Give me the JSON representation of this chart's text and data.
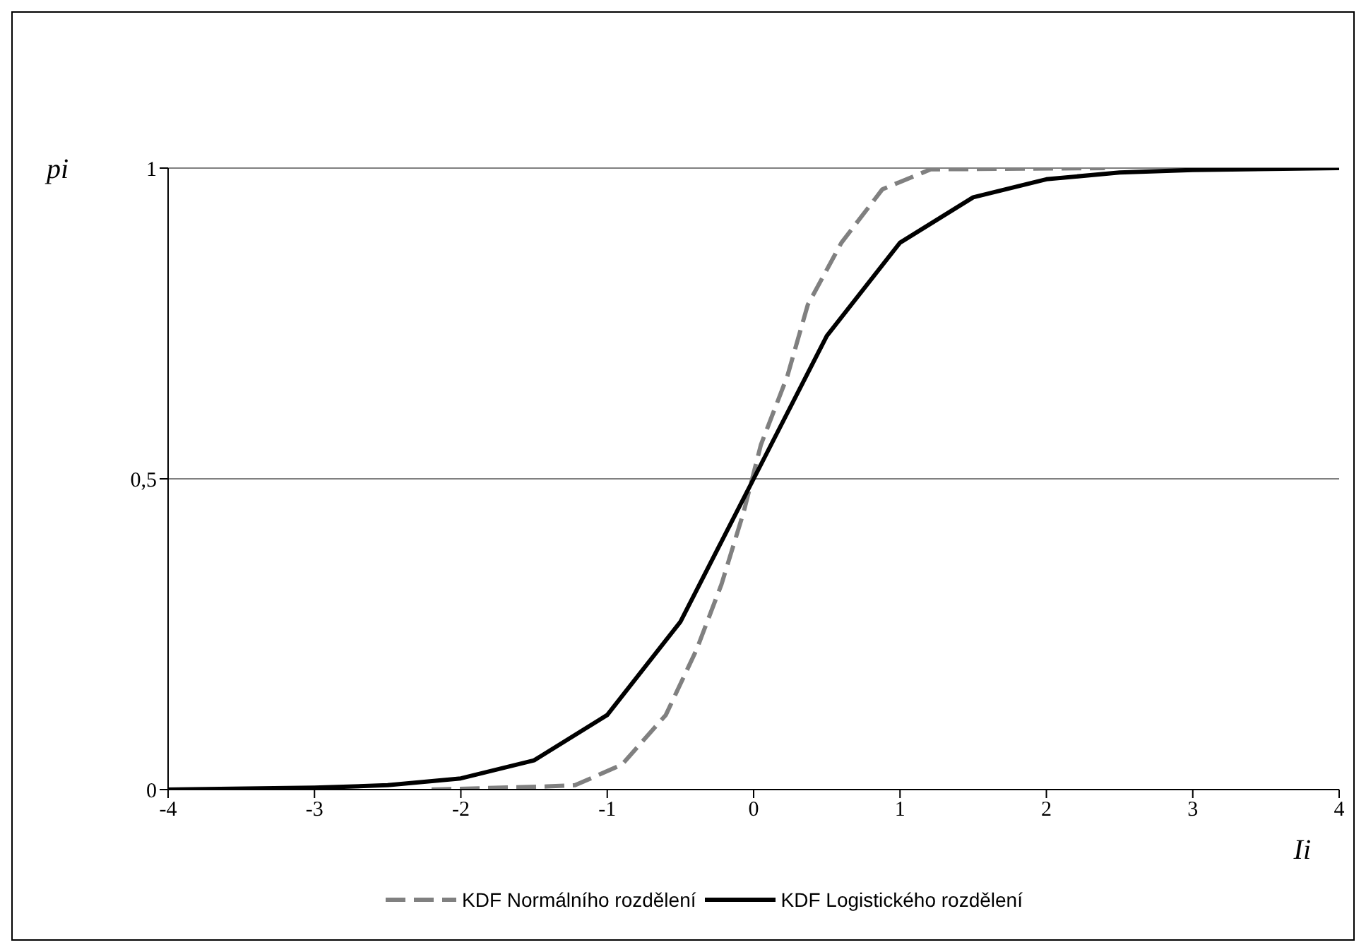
{
  "chart_data": {
    "type": "line",
    "xlabel": "Ii",
    "ylabel": "pi",
    "xlim": [
      -4,
      4
    ],
    "xticks": [
      -4,
      -3,
      -2,
      -1,
      0,
      1,
      2,
      3,
      4
    ],
    "ylim": [
      0,
      1
    ],
    "yticks": [
      0,
      {
        "value": 0.5,
        "label": "0,5"
      },
      1
    ],
    "grid": "y",
    "legend": "bottom",
    "marker": "none",
    "series": [
      {
        "name": "KDF Normálního rozdělení",
        "color": "#808080",
        "line_style": "dashed",
        "x": [
          -2.2,
          -1.41,
          -1.22,
          -0.9,
          -0.6,
          -0.39,
          -0.22,
          -0.07,
          0.05,
          0.23,
          0.37,
          0.6,
          0.88,
          1.21,
          2.4
        ],
        "values": [
          0,
          0.005,
          0.007,
          0.04,
          0.12,
          0.225,
          0.33,
          0.445,
          0.555,
          0.665,
          0.78,
          0.88,
          0.966,
          0.998,
          1
        ]
      },
      {
        "name": "KDF Logistického rozdělení",
        "color": "#000000",
        "line_style": "solid",
        "x": [
          -4,
          -3,
          -2.5,
          -2,
          -1.5,
          -1,
          -0.5,
          0,
          0.5,
          1,
          1.5,
          2,
          2.5,
          3,
          4
        ],
        "values": [
          0,
          0.003,
          0.007,
          0.018,
          0.047,
          0.12,
          0.27,
          0.5,
          0.73,
          0.88,
          0.953,
          0.982,
          0.993,
          0.997,
          1
        ]
      }
    ]
  }
}
